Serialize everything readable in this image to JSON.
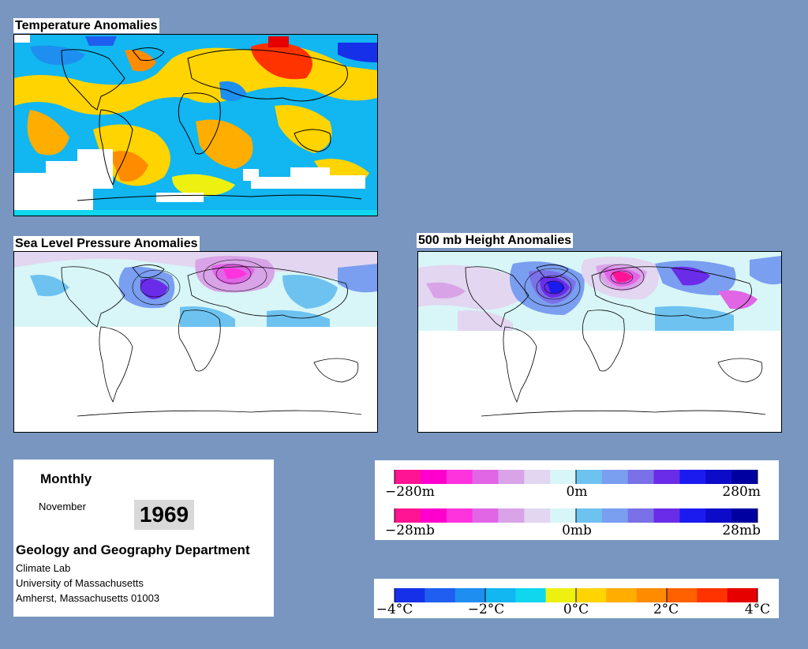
{
  "panels": {
    "temperature": {
      "title": "Temperature Anomalies"
    },
    "slp": {
      "title": "Sea Level Pressure Anomalies"
    },
    "height": {
      "title": "500 mb Height Anomalies"
    }
  },
  "info": {
    "period": "Monthly",
    "month": "November",
    "year": "1969",
    "department": "Geology and Geography Department",
    "lab": "Climate Lab",
    "university": "University of Massachusetts",
    "address": "Amherst, Massachusetts 01003"
  },
  "legends": {
    "height": {
      "left": "−280m",
      "center": "0m",
      "right": "280m"
    },
    "pressure": {
      "left": "−28mb",
      "center": "0mb",
      "right": "28mb"
    },
    "temperature": [
      "−4°C",
      "−2°C",
      "0°C",
      "2°C",
      "4°C"
    ]
  },
  "colors": {
    "background": "#7896c0",
    "anomaly_scale": [
      "#ff1493",
      "#ff00cc",
      "#ff33dd",
      "#e066e6",
      "#d9a3e8",
      "#e2d6f0",
      "#d8f6f8",
      "#6ec2f0",
      "#7a9ef0",
      "#7a70e8",
      "#6a2ce8",
      "#1b1bf0",
      "#0b0bc8",
      "#0000a0"
    ],
    "temperature_scale": [
      "#1530e8",
      "#1f5ef0",
      "#1e8ef0",
      "#12b6f0",
      "#10d6ee",
      "#eef010",
      "#ffd400",
      "#ffae00",
      "#ff8c00",
      "#ff6000",
      "#ff3300",
      "#e60000"
    ]
  }
}
